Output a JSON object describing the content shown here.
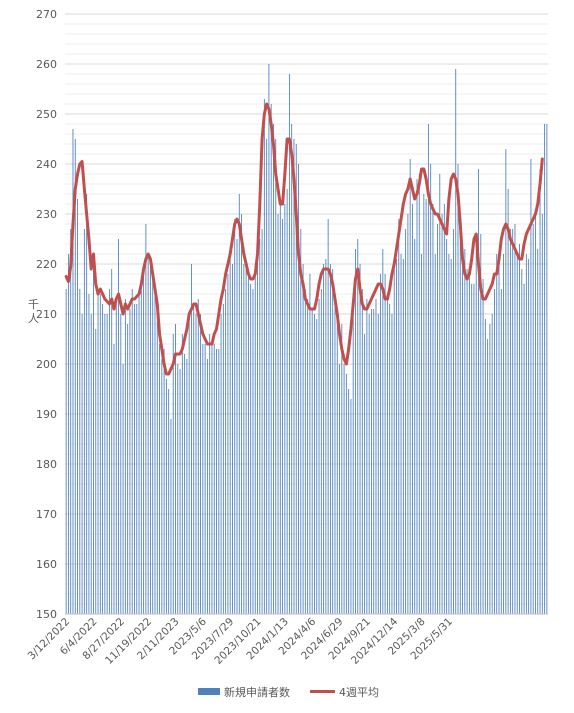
{
  "chart_data": {
    "type": "bar",
    "title": "",
    "ylabel": "千人",
    "ylim": [
      150,
      270
    ],
    "ytick_step": 10,
    "grid": true,
    "legend_placement": "bottom",
    "legend": [
      {
        "name": "新規申請者数",
        "kind": "bar",
        "color": "#4f81bd"
      },
      {
        "name": "4週平均",
        "kind": "line",
        "color": "#c0504d"
      }
    ],
    "x_tick_labels": [
      "3/12/2022",
      "6/4/2022",
      "8/27/2022",
      "11/19/2022",
      "2/11/2023",
      "2023/5/6",
      "2023/7/29",
      "2023/10/21",
      "2024/1/13",
      "2024/4/6",
      "2024/6/29",
      "2024/9/21",
      "2024/12/14",
      "2025/3/8",
      "2025/5/31"
    ],
    "x_tick_positions": [
      0,
      12,
      24,
      36,
      48,
      60,
      72,
      84,
      96,
      108,
      120,
      132,
      144,
      156,
      168
    ],
    "series": [
      {
        "name": "新規申請者数",
        "values": [
          215,
          222,
          227,
          247,
          245,
          233,
          215,
          210,
          227,
          234,
          214,
          210,
          222,
          207,
          215,
          214,
          212,
          210,
          210,
          215,
          219,
          204,
          212,
          225,
          210,
          200,
          213,
          208,
          211,
          215,
          212,
          212,
          214,
          216,
          218,
          228,
          222,
          220,
          218,
          215,
          210,
          204,
          201,
          203,
          197,
          195,
          189,
          206,
          208,
          200,
          199,
          206,
          202,
          201,
          210,
          220,
          212,
          210,
          213,
          210,
          204,
          204,
          201,
          206,
          205,
          204,
          203,
          203,
          210,
          212,
          215,
          218,
          221,
          220,
          229,
          225,
          234,
          230,
          220,
          219,
          218,
          216,
          215,
          220,
          223,
          225,
          227,
          253,
          245,
          260,
          252,
          248,
          245,
          230,
          233,
          229,
          232,
          235,
          258,
          248,
          245,
          244,
          240,
          227,
          220,
          215,
          213,
          218,
          211,
          210,
          209,
          213,
          215,
          220,
          221,
          229,
          220,
          219,
          212,
          211,
          200,
          208,
          200,
          198,
          195,
          193,
          212,
          223,
          225,
          220,
          215,
          206,
          213,
          210,
          211,
          211,
          213,
          210,
          218,
          223,
          218,
          214,
          212,
          210,
          220,
          221,
          229,
          222,
          221,
          227,
          230,
          241,
          232,
          225,
          237,
          238,
          222,
          234,
          233,
          248,
          240,
          232,
          222,
          228,
          238,
          230,
          232,
          225,
          222,
          221,
          227,
          259,
          240,
          228,
          224,
          223,
          219,
          218,
          216,
          216,
          225,
          239,
          226,
          217,
          209,
          205,
          208,
          210,
          215,
          222,
          220,
          215,
          222,
          243,
          235,
          227,
          227,
          228,
          222,
          224,
          219,
          216,
          222,
          221,
          241,
          228,
          230,
          223,
          239,
          230,
          248,
          248
        ]
      },
      {
        "name": "4週平均",
        "values": [
          217.5,
          216.5,
          219.5,
          228,
          235,
          238,
          240,
          240.5,
          235,
          230,
          225,
          219,
          222,
          216,
          214,
          215,
          214,
          213,
          212.5,
          212,
          213,
          211,
          213,
          214,
          212,
          210,
          212,
          211,
          212,
          213,
          213,
          213.5,
          214,
          216,
          219,
          221,
          222,
          221,
          218,
          215,
          212,
          206,
          203,
          200,
          198,
          198,
          199,
          200,
          202,
          202,
          202,
          203,
          205,
          207,
          210,
          211,
          212,
          212,
          210,
          208,
          206,
          205,
          204,
          204,
          204,
          206,
          207,
          210,
          213,
          215,
          218,
          220,
          222,
          225,
          228,
          229,
          228,
          225,
          222,
          220,
          218,
          217,
          217,
          218,
          222,
          232,
          245,
          250,
          252,
          251,
          248,
          244,
          238,
          235,
          232,
          232,
          238,
          245,
          245,
          242,
          237,
          230,
          222,
          218,
          216,
          213,
          212,
          211,
          211,
          211,
          213,
          216,
          218,
          219,
          219,
          219,
          218,
          216,
          213,
          210,
          206,
          203,
          201,
          200,
          203,
          207,
          212,
          217,
          219,
          215,
          212,
          211,
          211,
          212,
          213,
          214,
          215,
          216,
          216,
          215,
          213,
          213,
          215,
          218,
          220,
          223,
          226,
          229,
          232,
          234,
          235,
          237,
          235,
          233,
          234,
          236,
          239,
          239,
          237,
          234,
          232,
          231,
          230,
          230,
          229,
          228,
          227,
          226,
          233,
          237,
          238,
          237,
          234,
          228,
          221,
          218,
          217,
          218,
          221,
          225,
          226,
          220,
          215,
          213,
          213,
          214,
          215,
          216,
          218,
          218,
          221,
          225,
          227,
          228,
          227,
          225,
          224,
          223,
          222,
          221,
          221,
          224,
          226,
          227,
          228,
          229,
          230,
          232,
          236,
          241
        ]
      }
    ]
  }
}
